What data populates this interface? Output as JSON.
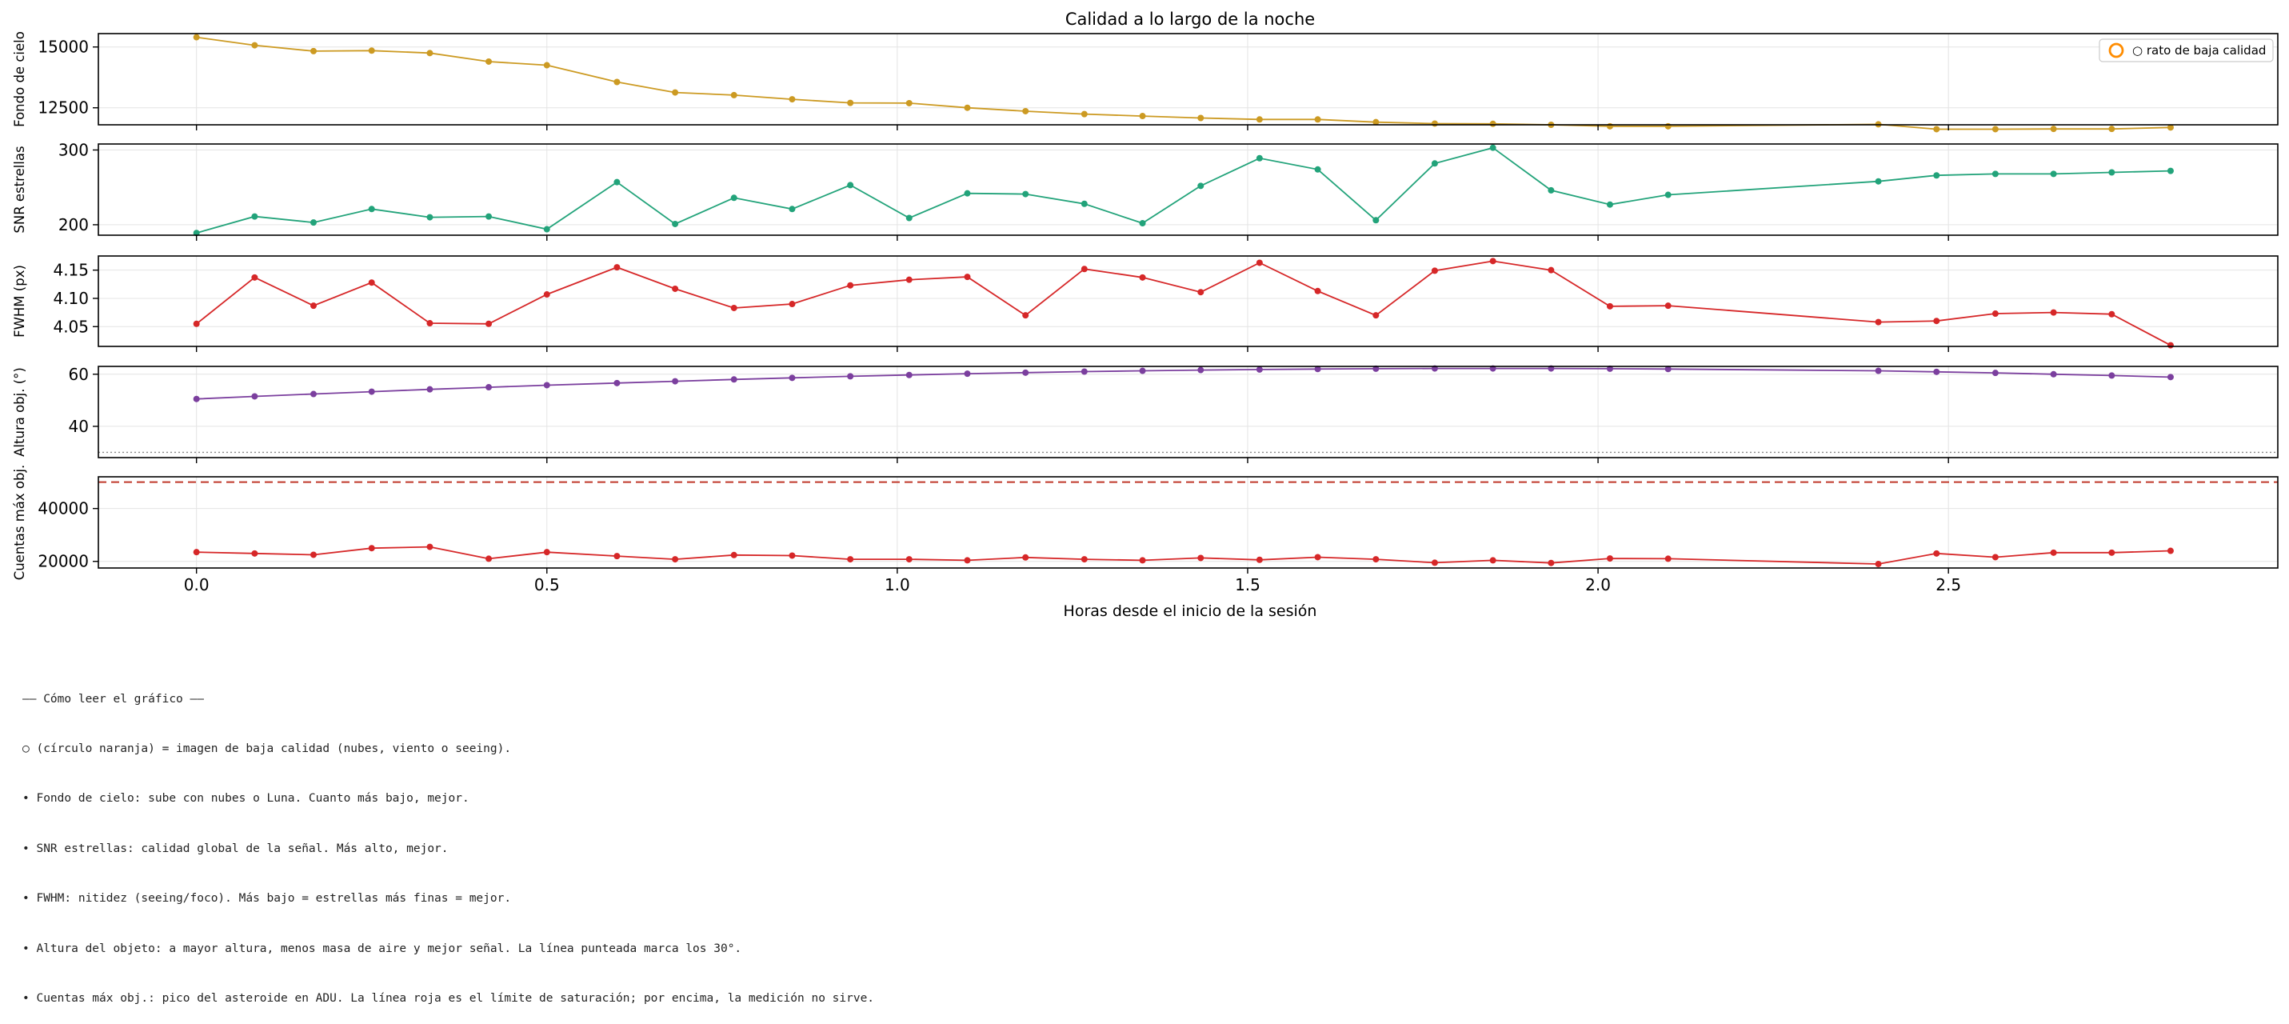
{
  "chart_data": {
    "type": "line",
    "title": "Calidad a lo largo de la noche",
    "xlabel": "Horas desde el inicio de la sesión",
    "xlim": [
      -0.14,
      2.97
    ],
    "xticks": [
      0.0,
      0.5,
      1.0,
      1.5,
      2.0,
      2.5
    ],
    "xtick_labels": [
      "0.0",
      "0.5",
      "1.0",
      "1.5",
      "2.0",
      "2.5"
    ],
    "grid": true,
    "x": [
      0.0,
      0.083,
      0.167,
      0.25,
      0.333,
      0.417,
      0.5,
      0.6,
      0.683,
      0.767,
      0.85,
      0.933,
      1.017,
      1.1,
      1.183,
      1.267,
      1.35,
      1.433,
      1.517,
      1.6,
      1.683,
      1.767,
      1.85,
      1.933,
      2.017,
      2.1,
      2.4,
      2.483,
      2.567,
      2.65,
      2.733,
      2.817
    ],
    "legend": {
      "label": "○ rato de baja calidad",
      "position": "top-right",
      "marker_color": "#ff8c00"
    },
    "panels": [
      {
        "ylabel": "Fondo de cielo",
        "color": "#cc9a22",
        "ylim": [
          11800,
          15550
        ],
        "yticks": [
          12500,
          15000
        ],
        "ytick_labels": [
          "12500",
          "15000"
        ],
        "values": [
          15400,
          15070,
          14830,
          14850,
          14750,
          14400,
          14250,
          13560,
          13130,
          13020,
          12850,
          12700,
          12690,
          12500,
          12360,
          12240,
          12160,
          12080,
          12020,
          12020,
          11910,
          11850,
          11840,
          11800,
          11740,
          11740,
          11820,
          11620,
          11620,
          11630,
          11630,
          11690
        ]
      },
      {
        "ylabel": "SNR estrellas",
        "color": "#22a37a",
        "ylim": [
          186,
          308
        ],
        "yticks": [
          200,
          300
        ],
        "ytick_labels": [
          "200",
          "300"
        ],
        "values": [
          189,
          211,
          203,
          221,
          210,
          211,
          194,
          257,
          201,
          236,
          221,
          253,
          209,
          242,
          241,
          228,
          202,
          252,
          289,
          274,
          206,
          282,
          303,
          246,
          227,
          240,
          258,
          266,
          268,
          268,
          270,
          272
        ]
      },
      {
        "ylabel": "FWHM (px)",
        "color": "#d62728",
        "ylim": [
          4.015,
          4.175
        ],
        "yticks": [
          4.05,
          4.1,
          4.15
        ],
        "ytick_labels": [
          "4.05",
          "4.10",
          "4.15"
        ],
        "values": [
          4.055,
          4.137,
          4.087,
          4.128,
          4.056,
          4.055,
          4.107,
          4.155,
          4.117,
          4.083,
          4.09,
          4.123,
          4.133,
          4.138,
          4.07,
          4.152,
          4.137,
          4.111,
          4.163,
          4.113,
          4.07,
          4.149,
          4.166,
          4.15,
          4.086,
          4.087,
          4.058,
          4.06,
          4.073,
          4.075,
          4.072,
          4.017
        ]
      },
      {
        "ylabel": "Altura obj. (°)",
        "color": "#7b3f9e",
        "ylim": [
          28,
          63
        ],
        "yticks": [
          40,
          60
        ],
        "ytick_labels": [
          "40",
          "60"
        ],
        "hline": {
          "value": 30,
          "style": "dotted",
          "color": "#888888"
        },
        "values": [
          50.5,
          51.5,
          52.4,
          53.3,
          54.2,
          55.0,
          55.8,
          56.6,
          57.3,
          58.0,
          58.6,
          59.2,
          59.7,
          60.2,
          60.6,
          61.0,
          61.3,
          61.6,
          61.8,
          62.0,
          62.1,
          62.2,
          62.2,
          62.2,
          62.1,
          62.0,
          61.3,
          60.9,
          60.5,
          60.0,
          59.5,
          58.9
        ]
      },
      {
        "ylabel": "Cuentas máx obj.",
        "color": "#d62728",
        "ylim": [
          17500,
          52000
        ],
        "yticks": [
          20000,
          40000
        ],
        "ytick_labels": [
          "20000",
          "40000"
        ],
        "hline": {
          "value": 50000,
          "style": "dashed",
          "color": "#c0392b"
        },
        "values": [
          23500,
          23000,
          22500,
          25000,
          25500,
          21000,
          23500,
          22000,
          20800,
          22400,
          22200,
          20800,
          20800,
          20400,
          21500,
          20800,
          20400,
          21300,
          20600,
          21600,
          20800,
          19500,
          20400,
          19400,
          21100,
          21000,
          19000,
          23000,
          21600,
          23300,
          23300,
          24000
        ]
      }
    ]
  },
  "notes": {
    "title": "—— Cómo leer el gráfico ——",
    "lines": [
      "○ (círculo naranja) = imagen de baja calidad (nubes, viento o seeing).",
      "• Fondo de cielo: sube con nubes o Luna. Cuanto más bajo, mejor.",
      "• SNR estrellas: calidad global de la señal. Más alto, mejor.",
      "• FWHM: nitidez (seeing/foco). Más bajo = estrellas más finas = mejor.",
      "• Altura del objeto: a mayor altura, menos masa de aire y mejor señal. La línea punteada marca los 30°.",
      "• Cuentas máx obj.: pico del asteroide en ADU. La línea roja es el límite de saturación; por encima, la medición no sirve."
    ]
  }
}
